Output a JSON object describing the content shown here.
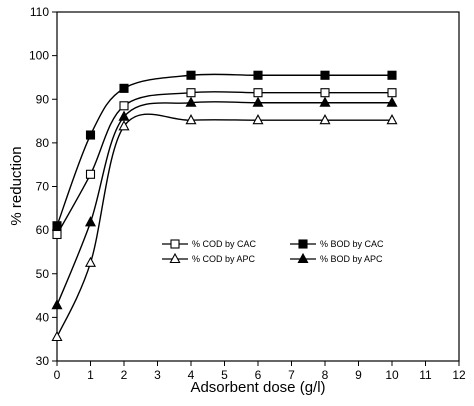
{
  "chart_data": {
    "type": "line",
    "title": "",
    "xlabel": "Adsorbent dose (g/l)",
    "ylabel": "% reduction",
    "xlim": [
      0,
      12
    ],
    "ylim": [
      30,
      110
    ],
    "xticks": [
      0,
      1,
      2,
      3,
      4,
      5,
      6,
      7,
      8,
      9,
      10,
      11,
      12
    ],
    "yticks": [
      30,
      40,
      50,
      60,
      70,
      80,
      90,
      100,
      110
    ],
    "grid": false,
    "legend_position": "center-right",
    "x": [
      0,
      1,
      2,
      4,
      6,
      8,
      10
    ],
    "series": [
      {
        "name": "% COD by CAC",
        "marker": "open-square",
        "values": [
          59,
          72.8,
          88.5,
          91.5,
          91.5,
          91.5,
          91.5
        ]
      },
      {
        "name": "% BOD by CAC",
        "marker": "filled-square",
        "values": [
          61,
          81.8,
          92.5,
          95.5,
          95.5,
          95.5,
          95.5
        ]
      },
      {
        "name": "% COD by APC",
        "marker": "open-triangle",
        "values": [
          35.5,
          52.5,
          83.8,
          85.2,
          85.2,
          85.2,
          85.2
        ]
      },
      {
        "name": "% BOD by APC",
        "marker": "filled-triangle",
        "values": [
          42.8,
          61.8,
          86,
          89.2,
          89.2,
          89.2,
          89.2
        ]
      }
    ]
  }
}
